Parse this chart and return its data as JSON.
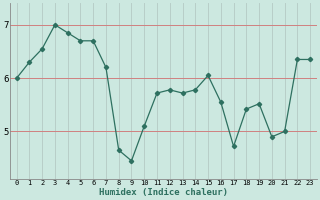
{
  "x": [
    0,
    1,
    2,
    3,
    4,
    5,
    6,
    7,
    8,
    9,
    10,
    11,
    12,
    13,
    14,
    15,
    16,
    17,
    18,
    19,
    20,
    21,
    22,
    23
  ],
  "y": [
    6.0,
    6.3,
    6.55,
    7.0,
    6.85,
    6.7,
    6.7,
    6.2,
    4.65,
    4.45,
    5.1,
    5.72,
    5.78,
    5.72,
    5.78,
    6.05,
    5.55,
    4.72,
    5.42,
    5.52,
    4.9,
    5.0,
    6.35,
    6.35
  ],
  "line_color": "#2e7060",
  "marker": "D",
  "markersize": 2.2,
  "bg_color": "#cce8e0",
  "xlabel": "Humidex (Indice chaleur)",
  "yticks": [
    5,
    6,
    7
  ],
  "xticks": [
    0,
    1,
    2,
    3,
    4,
    5,
    6,
    7,
    8,
    9,
    10,
    11,
    12,
    13,
    14,
    15,
    16,
    17,
    18,
    19,
    20,
    21,
    22,
    23
  ],
  "ylim": [
    4.1,
    7.4
  ],
  "xlim": [
    -0.5,
    23.5
  ],
  "hline_color": "#d08080",
  "vline_color": "#b8cec8"
}
